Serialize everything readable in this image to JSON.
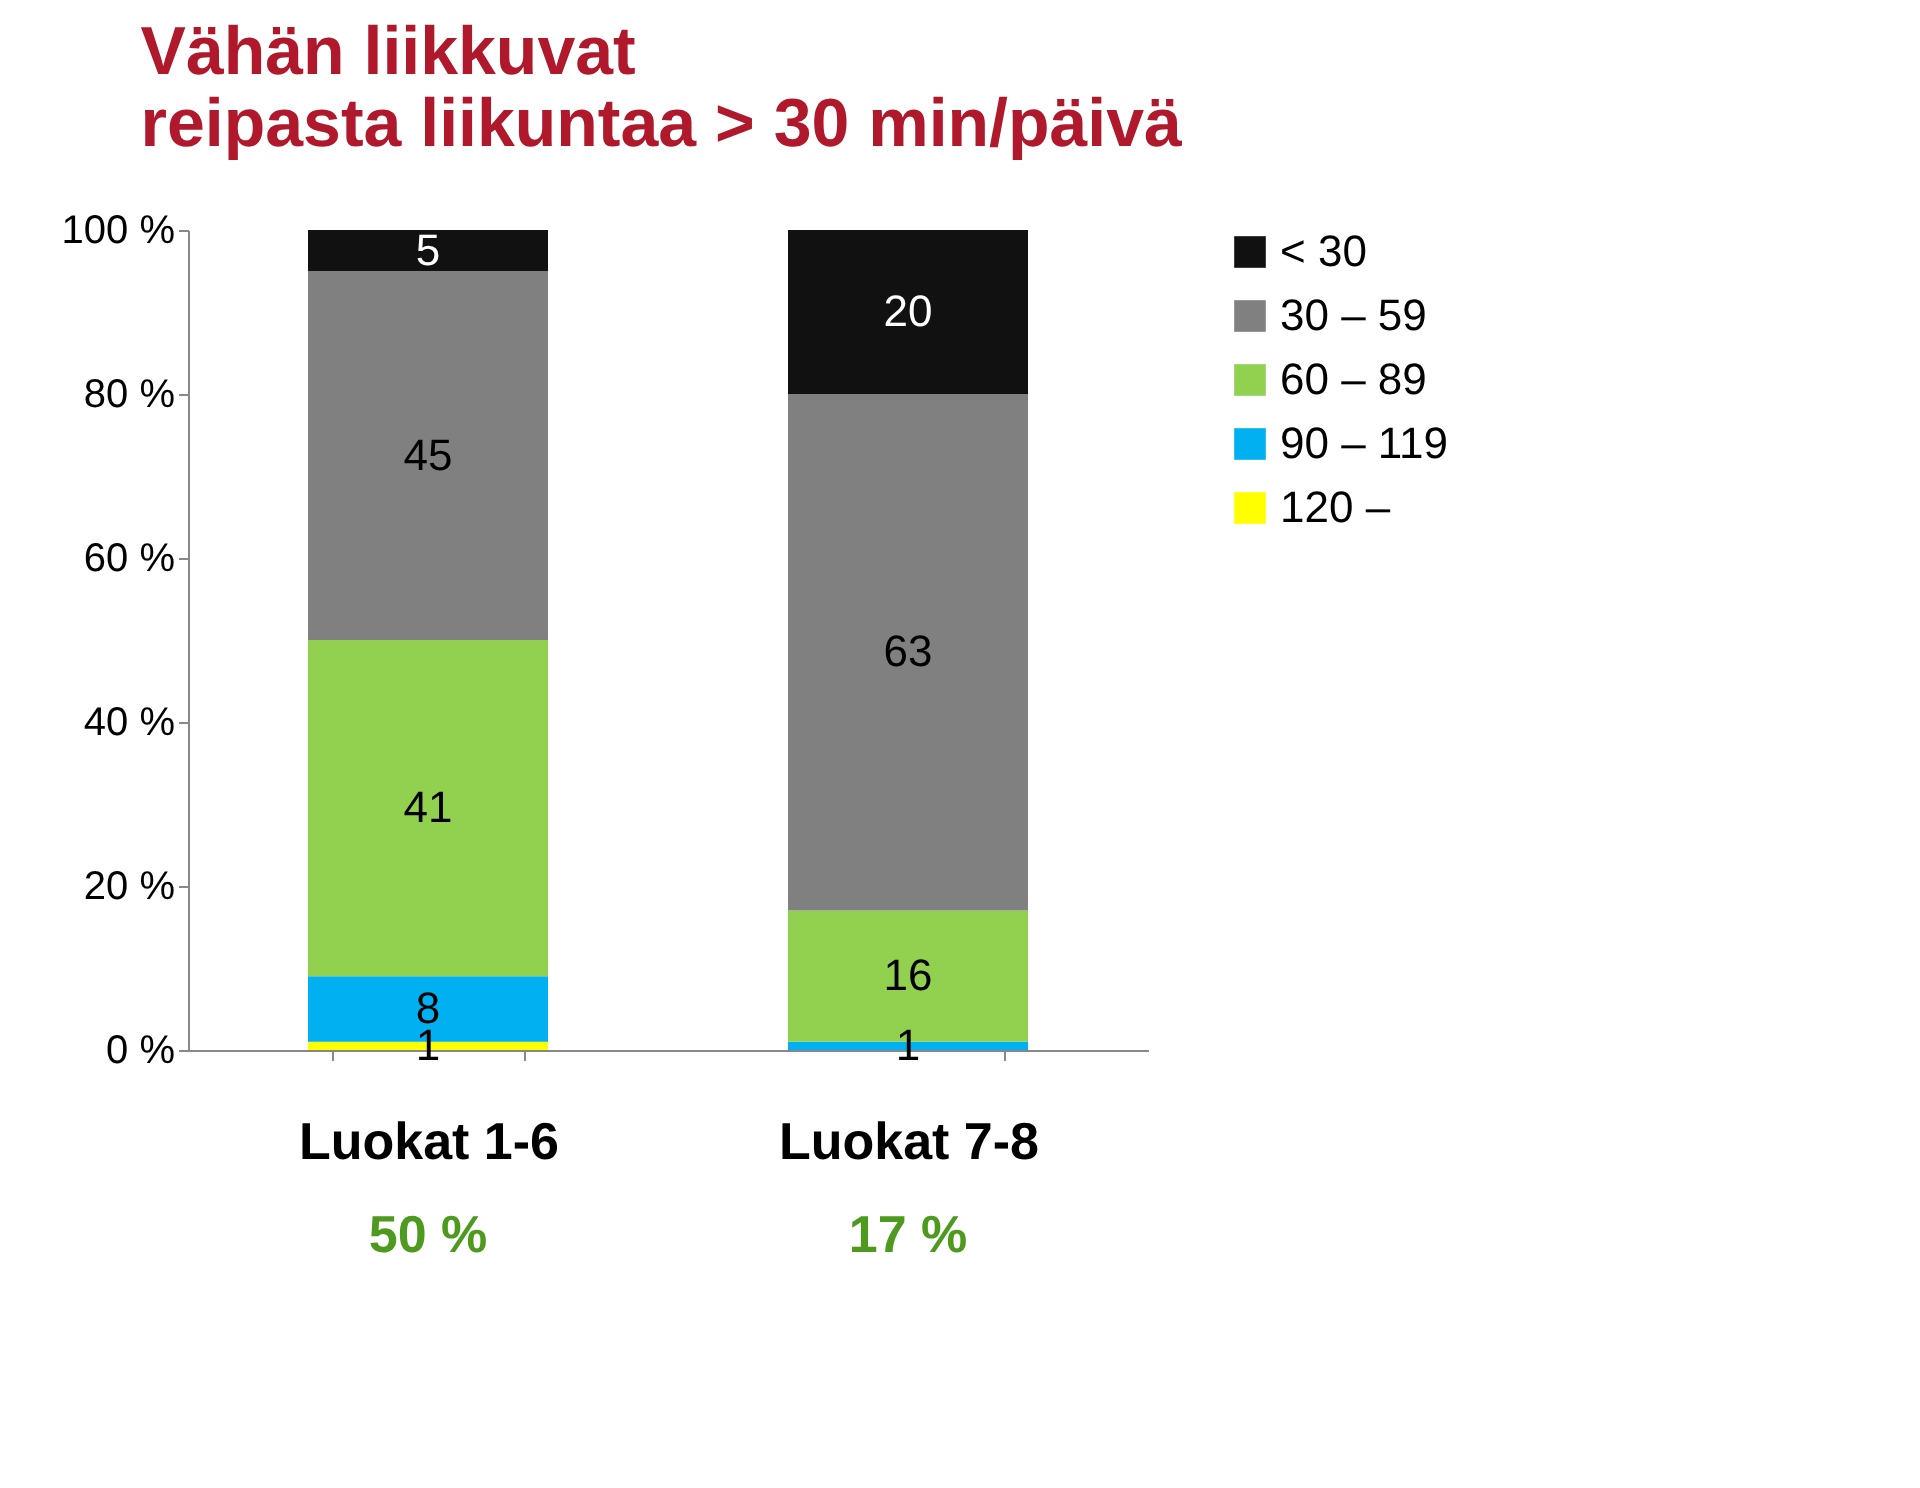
{
  "chart_data": {
    "type": "bar",
    "title": "Vähän liikkuvat\nreipasta liikuntaa > 30 min/päivä",
    "stacked": true,
    "categories": [
      "Luokat 1-6",
      "Luokat 7-8"
    ],
    "series": [
      {
        "name": "120 –",
        "color": "#ffff00",
        "values": [
          1,
          0
        ],
        "value_labels": [
          "1",
          null
        ]
      },
      {
        "name": "90 – 119",
        "color": "#00b0f0",
        "values": [
          8,
          1
        ],
        "value_labels": [
          "8",
          "1"
        ]
      },
      {
        "name": "60 – 89",
        "color": "#92d050",
        "values": [
          41,
          16
        ],
        "value_labels": [
          "41",
          "16"
        ]
      },
      {
        "name": "30 – 59",
        "color": "#808080",
        "values": [
          45,
          63
        ],
        "value_labels": [
          "45",
          "63"
        ]
      },
      {
        "name": "< 30",
        "color": "#111111",
        "values": [
          5,
          20
        ],
        "value_labels": [
          "5",
          "20"
        ]
      }
    ],
    "ylim": [
      0,
      100
    ],
    "yticks": [
      {
        "value": 0,
        "label": "0 %"
      },
      {
        "value": 20,
        "label": "20 %"
      },
      {
        "value": 40,
        "label": "40 %"
      },
      {
        "value": 60,
        "label": "60 %"
      },
      {
        "value": 80,
        "label": "80 %"
      },
      {
        "value": 100,
        "label": "100 %"
      }
    ],
    "grid": false,
    "legend": "right",
    "annotations": [
      "50 %",
      "17 %"
    ]
  }
}
